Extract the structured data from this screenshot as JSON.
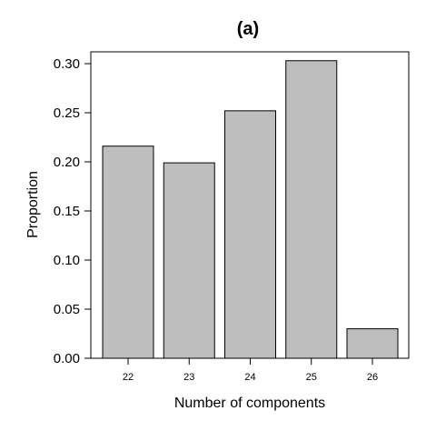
{
  "chart_data": {
    "type": "bar",
    "title": "(a)",
    "xlabel": "Number of components",
    "ylabel": "Proportion",
    "categories": [
      "22",
      "23",
      "24",
      "25",
      "26"
    ],
    "values": [
      0.216,
      0.199,
      0.252,
      0.303,
      0.03
    ],
    "ylim": [
      0,
      0.32
    ],
    "yticks": [
      "0.00",
      "0.05",
      "0.10",
      "0.15",
      "0.20",
      "0.25",
      "0.30"
    ],
    "grid": false,
    "legend": "none",
    "colors": {
      "bar_fill": "#bebebe",
      "bar_stroke": "#000000",
      "axis": "#000000",
      "background": "#ffffff"
    }
  }
}
